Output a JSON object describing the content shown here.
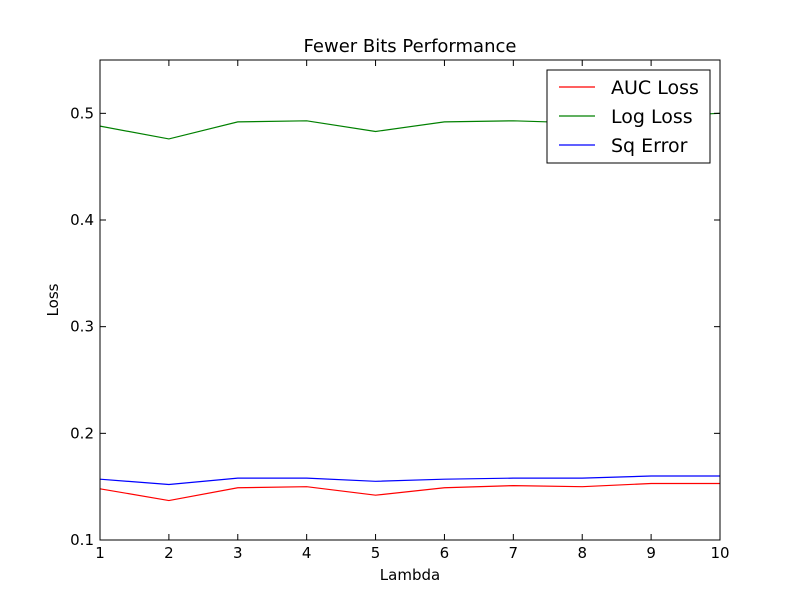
{
  "chart_data": {
    "type": "line",
    "title": "Fewer Bits Performance",
    "xlabel": "Lambda",
    "ylabel": "Loss",
    "xlim": [
      1,
      10
    ],
    "ylim": [
      0.1,
      0.55
    ],
    "x": [
      1,
      2,
      3,
      4,
      5,
      6,
      7,
      8,
      9,
      10
    ],
    "x_ticks": [
      1,
      2,
      3,
      4,
      5,
      6,
      7,
      8,
      9,
      10
    ],
    "y_ticks": [
      0.1,
      0.2,
      0.3,
      0.4,
      0.5
    ],
    "x_tick_labels": [
      "1",
      "2",
      "3",
      "4",
      "5",
      "6",
      "7",
      "8",
      "9",
      "10"
    ],
    "y_tick_labels": [
      "0.1",
      "0.2",
      "0.3",
      "0.4",
      "0.5"
    ],
    "grid": false,
    "legend_position": "top-right",
    "series": [
      {
        "name": "AUC Loss",
        "color": "#ff0000",
        "values": [
          0.148,
          0.137,
          0.149,
          0.15,
          0.142,
          0.149,
          0.151,
          0.15,
          0.153,
          0.153
        ]
      },
      {
        "name": "Log Loss",
        "color": "#008000",
        "values": [
          0.488,
          0.476,
          0.492,
          0.493,
          0.483,
          0.492,
          0.493,
          0.491,
          0.497,
          0.5
        ]
      },
      {
        "name": "Sq Error",
        "color": "#0000ff",
        "values": [
          0.157,
          0.152,
          0.158,
          0.158,
          0.155,
          0.157,
          0.158,
          0.158,
          0.16,
          0.16
        ]
      }
    ]
  }
}
